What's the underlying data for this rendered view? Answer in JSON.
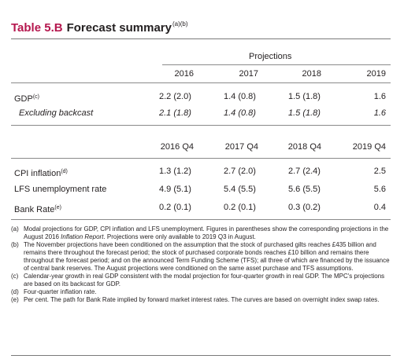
{
  "title": {
    "number": "Table 5.B",
    "name": "Forecast summary",
    "note_refs": "(a)(b)"
  },
  "projections_label": "Projections",
  "years": [
    "2016",
    "2017",
    "2018",
    "2019"
  ],
  "gdp": {
    "label": "GDP",
    "ref": "(c)",
    "values": [
      "2.2 (2.0)",
      "1.4 (0.8)",
      "1.5 (1.8)",
      "1.6"
    ]
  },
  "excl": {
    "label": "Excluding backcast",
    "values": [
      "2.1 (1.8)",
      "1.4 (0.8)",
      "1.5 (1.8)",
      "1.6"
    ]
  },
  "quarters": [
    "2016 Q4",
    "2017 Q4",
    "2018 Q4",
    "2019 Q4"
  ],
  "cpi": {
    "label": "CPI inflation",
    "ref": "(d)",
    "values": [
      "1.3 (1.2)",
      "2.7 (2.0)",
      "2.7 (2.4)",
      "2.5"
    ]
  },
  "lfs": {
    "label": "LFS unemployment rate",
    "values": [
      "4.9 (5.1)",
      "5.4 (5.5)",
      "5.6 (5.5)",
      "5.6"
    ]
  },
  "bank": {
    "label": "Bank Rate",
    "ref": "(e)",
    "values": [
      "0.2 (0.1)",
      "0.2 (0.1)",
      "0.3 (0.2)",
      "0.4"
    ]
  },
  "notes": {
    "a": {
      "key": "(a)",
      "text_before": "Modal projections for GDP, CPI inflation and LFS unemployment. Figures in parentheses show the corresponding projections in the August 2016 ",
      "italic": "Inflation Report",
      "text_after": ". Projections were only available to 2019 Q3 in August."
    },
    "b": {
      "key": "(b)",
      "text": "The November projections have been conditioned on the assumption that the stock of purchased gilts reaches £435 billion and remains there throughout the forecast period; the stock of purchased corporate bonds reaches £10 billion and remains there throughout the forecast period; and on the announced Term Funding Scheme (TFS); all three of which are financed by the issuance of central bank reserves. The August projections were conditioned on the same asset purchase and TFS assumptions."
    },
    "c": {
      "key": "(c)",
      "text": "Calendar-year growth in real GDP consistent with the modal projection for four-quarter growth in real GDP. The MPC's projections are based on its backcast for GDP."
    },
    "d": {
      "key": "(d)",
      "text": "Four-quarter inflation rate."
    },
    "e": {
      "key": "(e)",
      "text": "Per cent. The path for Bank Rate implied by forward market interest rates. The curves are based on overnight index swap rates."
    }
  }
}
